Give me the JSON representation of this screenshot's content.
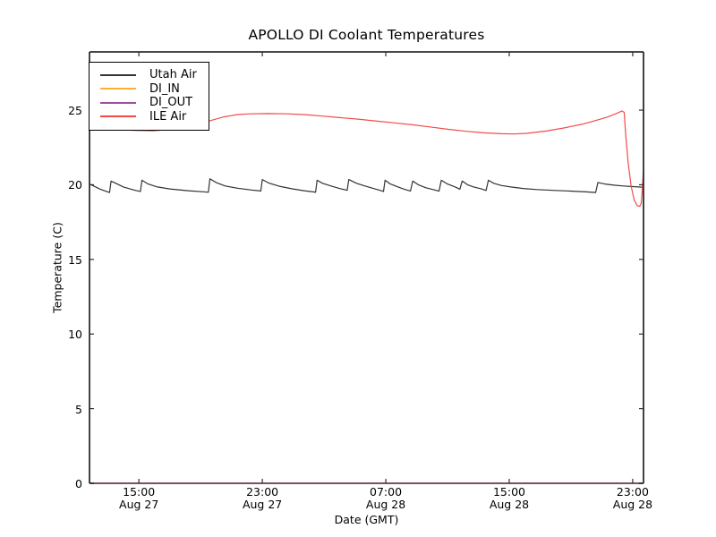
{
  "figure": {
    "background": "#ffffff"
  },
  "colors": {
    "axis": "#2e2e2e",
    "bottom_spine_blend": "#5f3b44",
    "background": "#ffffff"
  },
  "chart_data": {
    "type": "line",
    "title": "APOLLO DI Coolant Temperatures",
    "xlabel": "Date (GMT)",
    "ylabel": "Temperature (C)",
    "grid": false,
    "legend_position": "upper left",
    "x_units": "hours since Aug 27 00:00 GMT",
    "xlim": [
      11.8,
      47.7
    ],
    "ylim": [
      0,
      28.9
    ],
    "yticks": [
      0,
      5,
      10,
      15,
      20,
      25
    ],
    "xticks": [
      {
        "x": 15,
        "time": "15:00",
        "date": "Aug 27"
      },
      {
        "x": 23,
        "time": "23:00",
        "date": "Aug 27"
      },
      {
        "x": 31,
        "time": "07:00",
        "date": "Aug 28"
      },
      {
        "x": 39,
        "time": "15:00",
        "date": "Aug 28"
      },
      {
        "x": 47,
        "time": "23:00",
        "date": "Aug 28"
      }
    ],
    "series": [
      {
        "name": "Utah Air",
        "color": "#333333",
        "points": [
          [
            11.8,
            20.05
          ],
          [
            12.2,
            19.85
          ],
          [
            12.5,
            19.7
          ],
          [
            12.9,
            19.55
          ],
          [
            13.1,
            19.48
          ],
          [
            13.2,
            20.25
          ],
          [
            13.6,
            20.05
          ],
          [
            14.0,
            19.85
          ],
          [
            14.5,
            19.7
          ],
          [
            14.8,
            19.62
          ],
          [
            15.1,
            19.55
          ],
          [
            15.2,
            20.3
          ],
          [
            15.6,
            20.05
          ],
          [
            16.2,
            19.85
          ],
          [
            17.0,
            19.72
          ],
          [
            18.2,
            19.6
          ],
          [
            19.2,
            19.53
          ],
          [
            19.5,
            19.5
          ],
          [
            19.6,
            20.4
          ],
          [
            20.0,
            20.15
          ],
          [
            20.6,
            19.92
          ],
          [
            21.4,
            19.77
          ],
          [
            22.3,
            19.65
          ],
          [
            22.9,
            19.58
          ],
          [
            23.0,
            20.35
          ],
          [
            23.4,
            20.12
          ],
          [
            24.1,
            19.9
          ],
          [
            24.9,
            19.73
          ],
          [
            25.7,
            19.6
          ],
          [
            26.3,
            19.52
          ],
          [
            26.45,
            19.5
          ],
          [
            26.55,
            20.3
          ],
          [
            26.9,
            20.1
          ],
          [
            27.5,
            19.9
          ],
          [
            28.0,
            19.75
          ],
          [
            28.5,
            19.63
          ],
          [
            28.6,
            20.35
          ],
          [
            29.1,
            20.1
          ],
          [
            29.7,
            19.9
          ],
          [
            30.3,
            19.72
          ],
          [
            30.7,
            19.6
          ],
          [
            30.85,
            19.55
          ],
          [
            30.95,
            20.3
          ],
          [
            31.3,
            20.05
          ],
          [
            31.8,
            19.85
          ],
          [
            32.2,
            19.7
          ],
          [
            32.6,
            19.58
          ],
          [
            32.75,
            20.25
          ],
          [
            33.1,
            20.0
          ],
          [
            33.6,
            19.8
          ],
          [
            34.1,
            19.67
          ],
          [
            34.45,
            19.57
          ],
          [
            34.6,
            20.3
          ],
          [
            35.0,
            20.05
          ],
          [
            35.5,
            19.85
          ],
          [
            35.8,
            19.7
          ],
          [
            35.95,
            20.25
          ],
          [
            36.3,
            20.0
          ],
          [
            36.7,
            19.85
          ],
          [
            37.2,
            19.72
          ],
          [
            37.5,
            19.62
          ],
          [
            37.65,
            20.3
          ],
          [
            38.0,
            20.1
          ],
          [
            38.5,
            19.95
          ],
          [
            39.1,
            19.85
          ],
          [
            39.9,
            19.75
          ],
          [
            40.8,
            19.68
          ],
          [
            42.0,
            19.62
          ],
          [
            43.1,
            19.57
          ],
          [
            44.0,
            19.52
          ],
          [
            44.6,
            19.48
          ],
          [
            44.75,
            20.15
          ],
          [
            45.2,
            20.05
          ],
          [
            45.8,
            19.97
          ],
          [
            46.4,
            19.92
          ],
          [
            46.9,
            19.88
          ],
          [
            47.4,
            19.85
          ],
          [
            47.7,
            19.83
          ]
        ]
      },
      {
        "name": "DI_IN",
        "color": "#ffae33",
        "points": [
          [
            11.8,
            0
          ],
          [
            47.7,
            0
          ]
        ]
      },
      {
        "name": "DI_OUT",
        "color": "#9a4f9e",
        "points": [
          [
            11.8,
            0
          ],
          [
            47.7,
            0
          ]
        ]
      },
      {
        "name": "ILE Air",
        "color": "#f14c4c",
        "points": [
          [
            11.8,
            23.82
          ],
          [
            12.7,
            23.75
          ],
          [
            13.5,
            23.7
          ],
          [
            14.7,
            23.64
          ],
          [
            15.9,
            23.62
          ],
          [
            17.0,
            23.7
          ],
          [
            18.2,
            23.9
          ],
          [
            19.3,
            24.2
          ],
          [
            20.5,
            24.55
          ],
          [
            21.4,
            24.7
          ],
          [
            22.2,
            24.75
          ],
          [
            23.4,
            24.77
          ],
          [
            24.6,
            24.75
          ],
          [
            25.7,
            24.7
          ],
          [
            26.9,
            24.6
          ],
          [
            28.0,
            24.5
          ],
          [
            29.2,
            24.4
          ],
          [
            30.3,
            24.28
          ],
          [
            31.5,
            24.15
          ],
          [
            32.7,
            24.02
          ],
          [
            33.8,
            23.88
          ],
          [
            35.0,
            23.72
          ],
          [
            36.2,
            23.58
          ],
          [
            37.3,
            23.48
          ],
          [
            38.5,
            23.42
          ],
          [
            39.3,
            23.4
          ],
          [
            40.2,
            23.45
          ],
          [
            41.4,
            23.6
          ],
          [
            42.5,
            23.8
          ],
          [
            43.7,
            24.05
          ],
          [
            44.6,
            24.3
          ],
          [
            45.4,
            24.55
          ],
          [
            46.0,
            24.8
          ],
          [
            46.3,
            24.95
          ],
          [
            46.45,
            24.85
          ],
          [
            46.55,
            23.3
          ],
          [
            46.7,
            21.5
          ],
          [
            46.9,
            19.9
          ],
          [
            47.1,
            18.95
          ],
          [
            47.3,
            18.6
          ],
          [
            47.45,
            18.55
          ],
          [
            47.55,
            18.75
          ],
          [
            47.6,
            19.4
          ],
          [
            47.65,
            20.2
          ],
          [
            47.7,
            21.1
          ]
        ]
      }
    ]
  }
}
